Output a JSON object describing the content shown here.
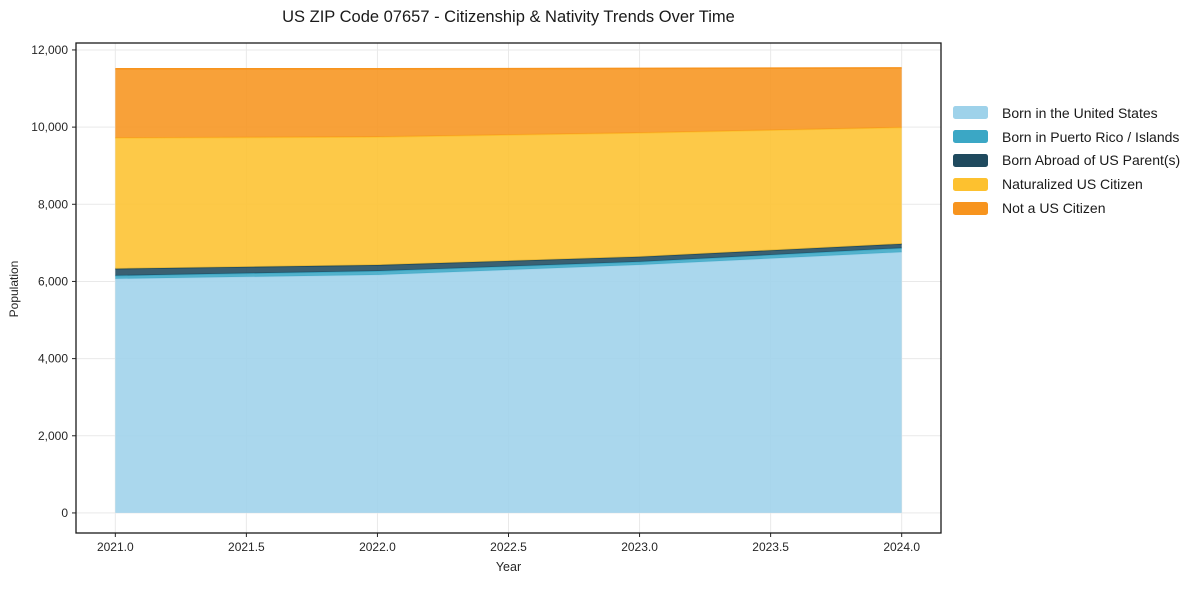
{
  "title": "US ZIP Code 07657 - Citizenship & Nativity Trends Over Time",
  "chart_data": {
    "type": "area",
    "stacked": true,
    "title": "US ZIP Code 07657 - Citizenship & Nativity Trends Over Time",
    "xlabel": "Year",
    "ylabel": "Population",
    "x": [
      2021,
      2022,
      2023,
      2024
    ],
    "series": [
      {
        "name": "Born in the United States",
        "color": "#9ed2ea",
        "values": [
          6070,
          6170,
          6430,
          6760
        ]
      },
      {
        "name": "Born in Puerto Rico / Islands",
        "color": "#3ba7c5",
        "values": [
          80,
          100,
          80,
          105
        ]
      },
      {
        "name": "Born Abroad of US Parent(s)",
        "color": "#1f4a5e",
        "values": [
          180,
          155,
          130,
          110
        ]
      },
      {
        "name": "Naturalized US Citizen",
        "color": "#fdc12f",
        "values": [
          3390,
          3320,
          3210,
          3015
        ]
      },
      {
        "name": "Not a US Citizen",
        "color": "#f7941e",
        "values": [
          1790,
          1765,
          1670,
          1545
        ]
      }
    ],
    "totals": [
      11510,
      11510,
      11520,
      11535
    ],
    "xlim": [
      2020.85,
      2024.15
    ],
    "ylim": [
      -520,
      12180
    ],
    "xticks": [
      2021.0,
      2021.5,
      2022.0,
      2022.5,
      2023.0,
      2023.5,
      2024.0
    ],
    "xtick_labels": [
      "2021.0",
      "2021.5",
      "2022.0",
      "2022.5",
      "2023.0",
      "2023.5",
      "2024.0"
    ],
    "yticks": [
      0,
      2000,
      4000,
      6000,
      8000,
      10000,
      12000
    ],
    "ytick_labels": [
      "0",
      "2,000",
      "4,000",
      "6,000",
      "8,000",
      "10,000",
      "12,000"
    ],
    "grid": true,
    "grid_color": "#e9e9e9",
    "frame_color": "#1a1a1a",
    "tick_label_color": "#262626",
    "legend_position": "right-outside"
  }
}
